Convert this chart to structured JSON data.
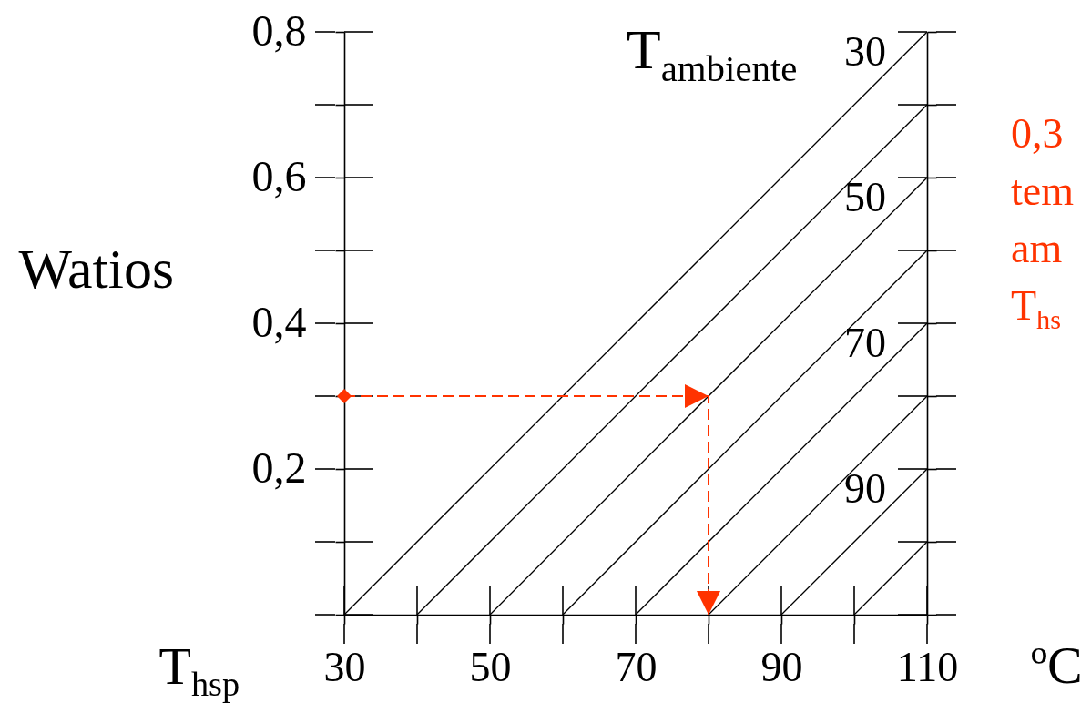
{
  "chart_data": {
    "type": "line",
    "xlabel": "T$_{hsp}$",
    "ylabel": "Watios",
    "legend_title": "T$_{ambiente}$",
    "legend": "right",
    "annotations": [
      "ºC",
      "0,3\ntem\nam\nT$_{hs}$"
    ],
    "xlim": [
      30,
      110
    ],
    "xticks": [
      30,
      {
        "value": 40,
        "label": null
      },
      50,
      {
        "value": 60,
        "label": null
      },
      70,
      {
        "value": 80,
        "label": null
      },
      90,
      {
        "value": 100,
        "label": null
      },
      110
    ],
    "ylim": [
      0,
      0.8
    ],
    "yticks": [
      {
        "value": 0,
        "label": null
      },
      {
        "value": 0.1,
        "label": null
      },
      {
        "value": 0.2,
        "label": "0,2"
      },
      {
        "value": 0.3,
        "label": null
      },
      {
        "value": 0.4,
        "label": "0,4"
      },
      {
        "value": 0.5,
        "label": null
      },
      {
        "value": 0.6,
        "label": "0,6"
      },
      {
        "value": 0.7,
        "label": null
      },
      {
        "value": 0.8,
        "label": "0,8"
      }
    ],
    "series": [
      {
        "name": "30",
        "color": "#000000",
        "x": [
          30,
          110
        ],
        "values": [
          0,
          0.8
        ]
      },
      {
        "color": "#000000",
        "x": [
          40,
          110
        ],
        "values": [
          0,
          0.7
        ]
      },
      {
        "name": "50",
        "color": "#000000",
        "x": [
          50,
          110
        ],
        "values": [
          0,
          0.6
        ]
      },
      {
        "color": "#000000",
        "x": [
          60,
          110
        ],
        "values": [
          0,
          0.5
        ]
      },
      {
        "name": "70",
        "color": "#000000",
        "x": [
          70,
          110
        ],
        "values": [
          0,
          0.4
        ]
      },
      {
        "color": "#000000",
        "x": [
          80,
          110
        ],
        "values": [
          0,
          0.3
        ]
      },
      {
        "name": "90",
        "color": "#000000",
        "x": [
          90,
          110
        ],
        "values": [
          0,
          0.2
        ]
      },
      {
        "color": "#000000",
        "x": [
          100,
          110
        ],
        "values": [
          0,
          0.1
        ]
      },
      {
        "type": "scatter",
        "color": "#ff3300",
        "marker": "diamond",
        "x": [
          30
        ],
        "values": [
          0.3
        ]
      }
    ]
  }
}
